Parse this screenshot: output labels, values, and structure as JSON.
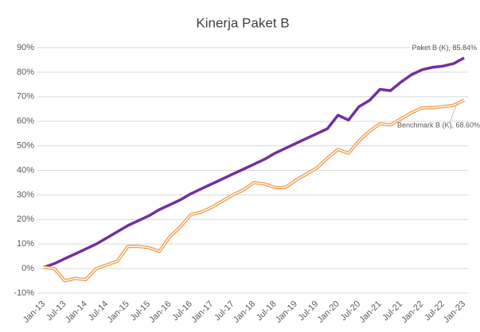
{
  "chart_data": {
    "type": "line",
    "title": "Kinerja Paket B",
    "categories": [
      "Jan-13",
      null,
      "Jul-13",
      null,
      "Jan-14",
      null,
      "Jul-14",
      null,
      "Jan-15",
      null,
      "Jul-15",
      null,
      "Jan-16",
      null,
      "Jul-16",
      null,
      "Jan-17",
      null,
      "Jul-17",
      null,
      "Jan-18",
      null,
      "Jul-18",
      null,
      "Jan-19",
      null,
      "Jul-19",
      null,
      "Jan-20",
      null,
      "Jul-20",
      null,
      "Jan-21",
      null,
      "Jul-21",
      null,
      "Jan-22",
      null,
      "Jul-22",
      null,
      "Jan-23"
    ],
    "series": [
      {
        "name": "Paket B (K)",
        "color": "#7030a0",
        "values": [
          0.5,
          2,
          4,
          6,
          8,
          10,
          12.5,
          15,
          17.5,
          19.5,
          21.5,
          24,
          26,
          28,
          30.5,
          32.5,
          34.5,
          36.5,
          38.5,
          40.5,
          42.5,
          44.5,
          47,
          49,
          51,
          53,
          55,
          57,
          62.5,
          60.5,
          66,
          68.5,
          73,
          72.5,
          76,
          79,
          81,
          82,
          82.5,
          83.5,
          85.84
        ]
      },
      {
        "name": "Benchmark B (K)",
        "color": "#ed9b4a",
        "values": [
          0.5,
          0,
          -5,
          -4,
          -4.5,
          0,
          1.5,
          3,
          9,
          9,
          8.5,
          7,
          13,
          17,
          22,
          23,
          25,
          27.5,
          30,
          32,
          35,
          34.5,
          33,
          33,
          36,
          38.5,
          41,
          45,
          48.5,
          47,
          52,
          56,
          59,
          58.5,
          61,
          63.5,
          65.5,
          65.5,
          66,
          66.5,
          68.6
        ]
      }
    ],
    "annotations": [
      "Paket B (K), 85.84%",
      "Benchmark B (K), 68.60%"
    ],
    "ylim": [
      -10,
      90
    ],
    "yticks": [
      {
        "value": -10,
        "label": "-10%"
      },
      {
        "value": 0,
        "label": "0%"
      },
      {
        "value": 10,
        "label": "10%"
      },
      {
        "value": 20,
        "label": "20%"
      },
      {
        "value": 30,
        "label": "30%"
      },
      {
        "value": 40,
        "label": "40%"
      },
      {
        "value": 50,
        "label": "50%"
      },
      {
        "value": 60,
        "label": "60%"
      },
      {
        "value": 70,
        "label": "70%"
      },
      {
        "value": 80,
        "label": "80%"
      },
      {
        "value": 90,
        "label": "90%"
      }
    ],
    "grid": true
  }
}
